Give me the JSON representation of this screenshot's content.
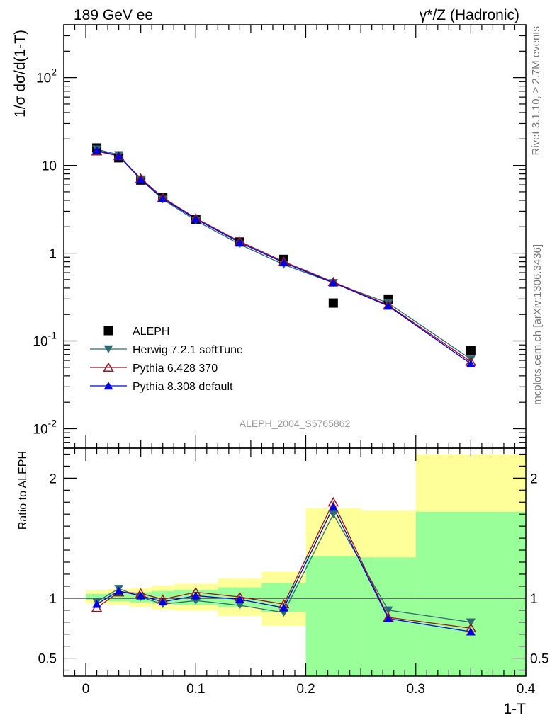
{
  "header": {
    "left": "189 GeV ee",
    "right": "γ*/Z (Hadronic)"
  },
  "side_labels": {
    "rivet": "Rivet 3.1.10, ≥ 2.7M events",
    "mcplots": "mcplots.cern.ch [arXiv:1306.3436]"
  },
  "watermark": "ALEPH_2004_S5765862",
  "colors": {
    "data": "#000000",
    "herwig": "#2e6a73",
    "pythia6": "#a01020",
    "pythia8": "#0000dd",
    "band_inner": "#99ff99",
    "band_outer": "#ffff99"
  },
  "chart_data": [
    {
      "type": "scatter",
      "panel": "main",
      "ylabel": "1/σ  dσ/d(1-T)",
      "yscale": "log",
      "ylim": [
        0.006,
        400
      ],
      "xlim": [
        -0.02,
        0.4
      ],
      "y_ticks": [
        {
          "value": 0.01,
          "base": "10",
          "exp": "-2"
        },
        {
          "value": 0.1,
          "base": "10",
          "exp": "-1"
        },
        {
          "value": 1,
          "base": "1",
          "exp": ""
        },
        {
          "value": 10,
          "base": "10",
          "exp": ""
        },
        {
          "value": 100,
          "base": "10",
          "exp": "2"
        }
      ],
      "x": [
        0.01,
        0.03,
        0.05,
        0.07,
        0.1,
        0.14,
        0.18,
        0.225,
        0.275,
        0.35
      ],
      "series": [
        {
          "name": "ALEPH",
          "marker": "square",
          "values": [
            15.8,
            12.2,
            6.8,
            4.3,
            2.4,
            1.34,
            0.85,
            0.27,
            0.3,
            0.078
          ]
        },
        {
          "name": "Herwig 7.2.1 softTune",
          "marker": "triangle-down",
          "values": [
            15.3,
            13.2,
            6.9,
            4.1,
            2.35,
            1.26,
            0.74,
            0.46,
            0.27,
            0.062
          ]
        },
        {
          "name": "Pythia 6.428 370",
          "marker": "triangle-up-open",
          "values": [
            14.5,
            12.8,
            7.1,
            4.3,
            2.5,
            1.36,
            0.8,
            0.47,
            0.255,
            0.058
          ]
        },
        {
          "name": "Pythia 8.308 default",
          "marker": "triangle-up",
          "values": [
            14.9,
            12.8,
            6.9,
            4.2,
            2.45,
            1.32,
            0.78,
            0.46,
            0.25,
            0.055
          ]
        }
      ]
    },
    {
      "type": "scatter",
      "panel": "ratio",
      "ylabel": "Ratio to ALEPH",
      "xlabel": "1-T",
      "ylim": [
        0.35,
        2.25
      ],
      "xlim": [
        -0.02,
        0.4
      ],
      "y_ticks": [
        0.5,
        1,
        2
      ],
      "x_ticks": [
        {
          "value": 0,
          "label": "0"
        },
        {
          "value": 0.1,
          "label": "0.1"
        },
        {
          "value": 0.2,
          "label": "0.2"
        },
        {
          "value": 0.3,
          "label": "0.3"
        },
        {
          "value": 0.4,
          "label": "0.4"
        }
      ],
      "bands": [
        {
          "x0": 0.0,
          "x1": 0.02,
          "inner": [
            0.985,
            1.035
          ],
          "outer": [
            0.955,
            1.065
          ]
        },
        {
          "x0": 0.02,
          "x1": 0.04,
          "inner": [
            0.975,
            1.04
          ],
          "outer": [
            0.945,
            1.075
          ]
        },
        {
          "x0": 0.04,
          "x1": 0.06,
          "inner": [
            0.965,
            1.05
          ],
          "outer": [
            0.925,
            1.085
          ]
        },
        {
          "x0": 0.06,
          "x1": 0.08,
          "inner": [
            0.955,
            1.06
          ],
          "outer": [
            0.905,
            1.105
          ]
        },
        {
          "x0": 0.08,
          "x1": 0.12,
          "inner": [
            0.945,
            1.07
          ],
          "outer": [
            0.895,
            1.12
          ]
        },
        {
          "x0": 0.12,
          "x1": 0.16,
          "inner": [
            0.925,
            1.09
          ],
          "outer": [
            0.85,
            1.165
          ]
        },
        {
          "x0": 0.16,
          "x1": 0.2,
          "inner": [
            0.885,
            1.125
          ],
          "outer": [
            0.77,
            1.22
          ]
        },
        {
          "x0": 0.2,
          "x1": 0.25,
          "inner": [
            0.35,
            1.35
          ],
          "outer": [
            0.35,
            1.75
          ]
        },
        {
          "x0": 0.25,
          "x1": 0.3,
          "inner": [
            0.35,
            1.34
          ],
          "outer": [
            0.35,
            1.73
          ]
        },
        {
          "x0": 0.3,
          "x1": 0.4,
          "inner": [
            0.35,
            1.72
          ],
          "outer": [
            0.35,
            2.2
          ]
        }
      ],
      "x": [
        0.01,
        0.03,
        0.05,
        0.07,
        0.1,
        0.14,
        0.18,
        0.225,
        0.275,
        0.35
      ],
      "series": [
        {
          "name": "Herwig 7.2.1 softTune",
          "marker": "triangle-down",
          "values": [
            0.97,
            1.08,
            1.01,
            0.95,
            0.98,
            0.94,
            0.88,
            1.7,
            0.9,
            0.8
          ]
        },
        {
          "name": "Pythia 6.428 370",
          "marker": "triangle-up-open",
          "values": [
            0.92,
            1.05,
            1.04,
            0.99,
            1.05,
            1.01,
            0.95,
            1.8,
            0.84,
            0.75
          ]
        },
        {
          "name": "Pythia 8.308 default",
          "marker": "triangle-up",
          "values": [
            0.95,
            1.06,
            1.02,
            0.97,
            1.02,
            0.99,
            0.92,
            1.76,
            0.83,
            0.72
          ]
        }
      ]
    }
  ]
}
